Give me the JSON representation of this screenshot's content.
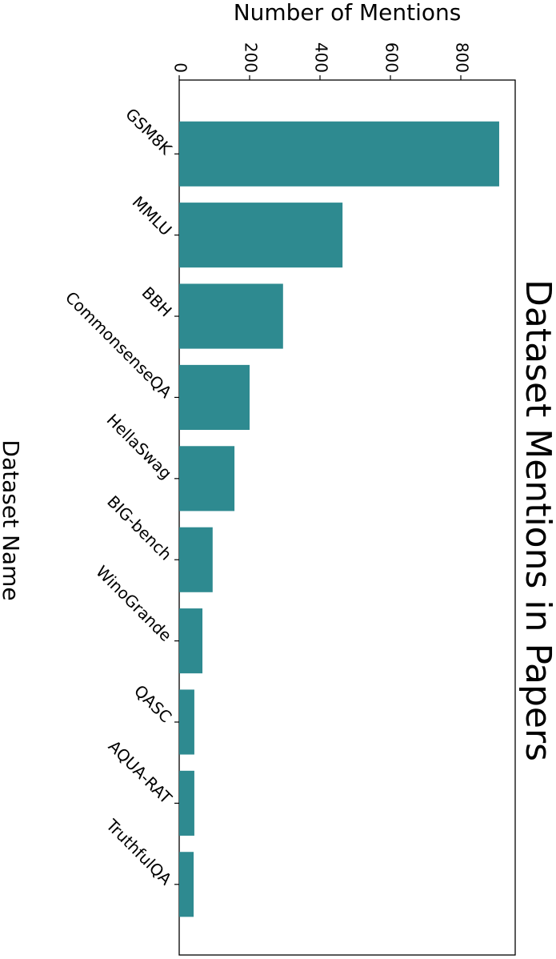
{
  "chart_data": {
    "type": "bar",
    "title": "Dataset Mentions in Papers",
    "x_label": "Dataset Name",
    "y_label": "Number of Mentions",
    "categories": [
      "GSM8K",
      "MMLU",
      "BBH",
      "CommonsenseQA",
      "HellaSwag",
      "BIG-bench",
      "WinoGrande",
      "QASC",
      "AQUA-RAT",
      "TruthfulQA"
    ],
    "values": [
      909,
      464,
      295,
      200,
      157,
      95,
      66,
      43,
      43,
      41
    ],
    "color": "#2e8a90",
    "ylim": [
      0,
      954.5
    ],
    "yticks": [
      0,
      200,
      400,
      600,
      800
    ],
    "grid": false
  }
}
